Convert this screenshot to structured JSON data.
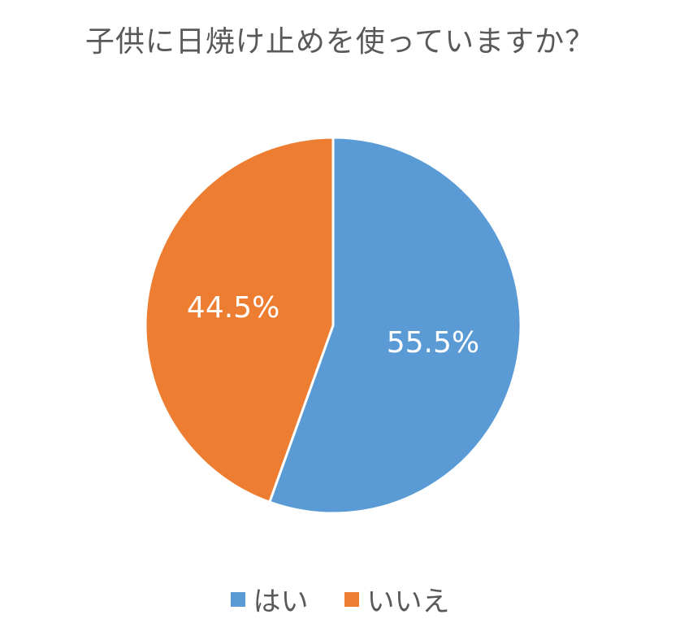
{
  "chart_data": {
    "type": "pie",
    "title": "子供に日焼け止めを使っていますか？",
    "slices": [
      {
        "label": "はい",
        "value": 55.5,
        "data_label": "55.5%",
        "color": "#5B9BD5"
      },
      {
        "label": "いいえ",
        "value": 44.5,
        "data_label": "44.5%",
        "color": "#ED7D31"
      }
    ],
    "legend_position": "bottom",
    "start_angle": "12 o'clock, clockwise"
  }
}
